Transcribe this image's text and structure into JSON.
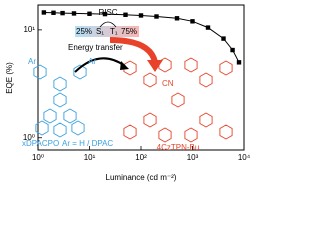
{
  "chart_data": {
    "type": "line",
    "x_label": "Luminance (cd m⁻²)",
    "y_label": "EQE (%)",
    "x": [
      1.3,
      2,
      3,
      5,
      10,
      20,
      50,
      100,
      200,
      500,
      1000,
      2000,
      4000,
      6000,
      8000
    ],
    "series": [
      {
        "name": "EQE",
        "color": "#000000",
        "values": [
          14.5,
          14.4,
          14.3,
          14.2,
          14.1,
          14,
          13.8,
          13.6,
          13.3,
          12.8,
          12,
          10.5,
          8.3,
          6.5,
          5
        ]
      }
    ],
    "xlim": [
      1,
      10000
    ],
    "ylim": [
      0.77,
      17
    ],
    "xscale": "log",
    "yscale": "log",
    "xticks": [
      {
        "value": 1,
        "label": "10⁰"
      },
      {
        "value": 10,
        "label": "10¹"
      },
      {
        "value": 100,
        "label": "10²"
      },
      {
        "value": 1000,
        "label": "10³"
      },
      {
        "value": 10000,
        "label": "10⁴"
      }
    ],
    "yticks": [
      {
        "value": 1,
        "label": "10⁰"
      },
      {
        "value": 10,
        "label": "10¹"
      }
    ],
    "annotations": {
      "risc": "RISC",
      "singlet_share": "25%",
      "singlet": "S₁",
      "triplet": "T₁",
      "triplet_share": "75%",
      "transfer": "Energy transfer",
      "acceptor": "4CzTPN-Bu",
      "donor": "xDPACPO",
      "donor_note": "Ar = H / DPAC",
      "ar_left": "Ar",
      "ar_right": "Ar",
      "cn": "CN"
    }
  }
}
